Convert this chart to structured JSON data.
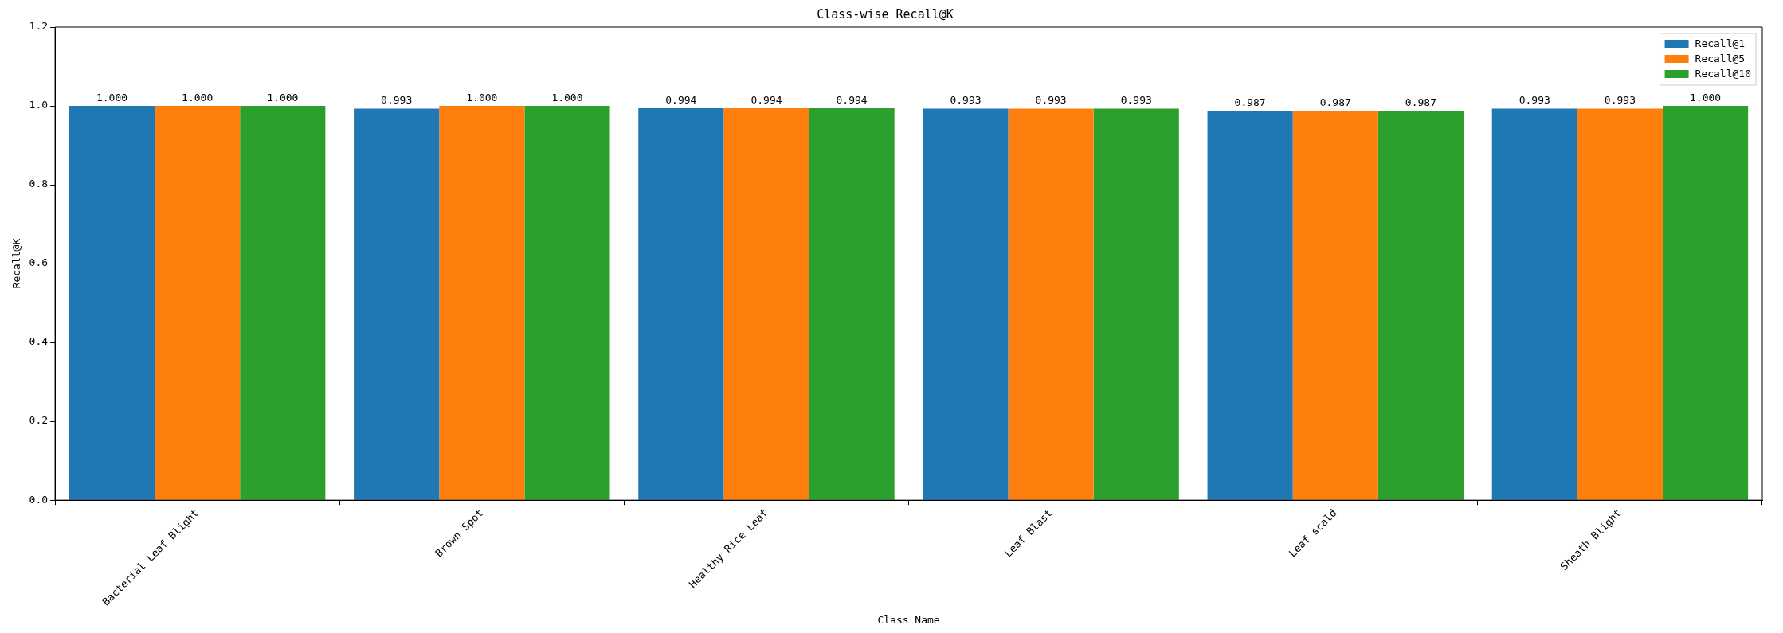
{
  "chart_data": {
    "type": "bar",
    "title": "Class-wise Recall@K",
    "xlabel": "Class Name",
    "ylabel": "Recall@K",
    "categories": [
      "Bacterial Leaf Blight",
      "Brown Spot",
      "Healthy Rice Leaf",
      "Leaf Blast",
      "Leaf scald",
      "Sheath Blight"
    ],
    "series": [
      {
        "name": "Recall@1",
        "color": "#1f77b4",
        "values": [
          1.0,
          0.993,
          0.994,
          0.993,
          0.987,
          0.993
        ],
        "value_labels": [
          "1.000",
          "0.993",
          "0.994",
          "0.993",
          "0.987",
          "0.993"
        ]
      },
      {
        "name": "Recall@5",
        "color": "#ff7f0e",
        "values": [
          1.0,
          1.0,
          0.994,
          0.993,
          0.987,
          0.993
        ],
        "value_labels": [
          "1.000",
          "1.000",
          "0.994",
          "0.993",
          "0.987",
          "0.993"
        ]
      },
      {
        "name": "Recall@10",
        "color": "#2ca02c",
        "values": [
          1.0,
          1.0,
          0.994,
          0.993,
          0.987,
          1.0
        ],
        "value_labels": [
          "1.000",
          "1.000",
          "0.994",
          "0.993",
          "0.987",
          "1.000"
        ]
      }
    ],
    "ylim": [
      0,
      1.2
    ],
    "yticks": [
      {
        "value": 0,
        "label": "0.0"
      },
      {
        "value": 0.2,
        "label": "0.2"
      },
      {
        "value": 0.4,
        "label": "0.4"
      },
      {
        "value": 0.6,
        "label": "0.6"
      },
      {
        "value": 0.8,
        "label": "0.8"
      },
      {
        "value": 1.0,
        "label": "1.0"
      },
      {
        "value": 1.2,
        "label": "1.2"
      }
    ],
    "grid": false,
    "legend": "top right"
  }
}
